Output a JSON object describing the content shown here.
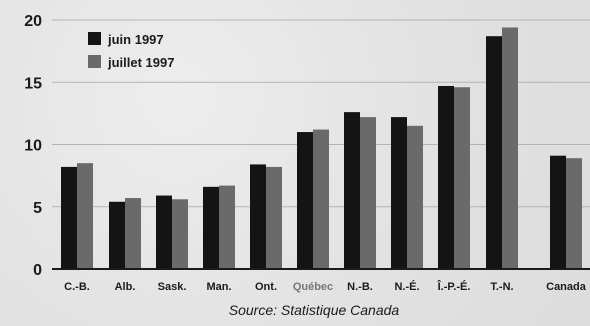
{
  "chart_data": {
    "type": "bar",
    "categories": [
      "C.-B.",
      "Alb.",
      "Sask.",
      "Man.",
      "Ont.",
      "Québec",
      "N.-B.",
      "N.-É.",
      "Î.-P.-É.",
      "T.-N.",
      "Canada"
    ],
    "highlight_category": "Québec",
    "series": [
      {
        "name": "juin 1997",
        "color": "#141414",
        "values": [
          8.2,
          5.4,
          5.9,
          6.6,
          8.4,
          11.0,
          12.6,
          12.2,
          14.7,
          18.7,
          9.1
        ]
      },
      {
        "name": "juillet 1997",
        "color": "#6a6a6a",
        "values": [
          8.5,
          5.7,
          5.6,
          6.7,
          8.2,
          11.2,
          12.2,
          11.5,
          14.6,
          19.4,
          8.9
        ]
      }
    ],
    "yticks": [
      0,
      5,
      10,
      15,
      20
    ],
    "ylim": [
      0,
      20
    ],
    "grid": true,
    "legend_position": "top-left",
    "source": "Source: Statistique Canada"
  }
}
